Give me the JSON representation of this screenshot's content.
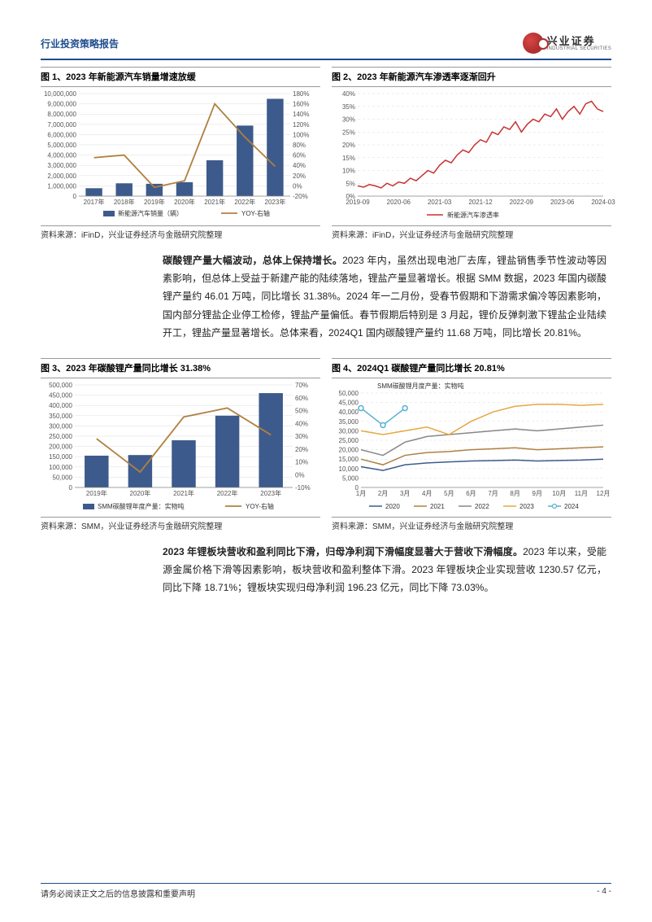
{
  "header": {
    "title": "行业投资策略报告",
    "logo_cn": "兴业证券",
    "logo_en": "INDUSTRIAL SECURITIES"
  },
  "fig1": {
    "title": "图 1、2023 年新能源汽车销量增速放缓",
    "source": "资料来源：iFinD，兴业证券经济与金融研究院整理",
    "type": "bar+line",
    "categories": [
      "2017年",
      "2018年",
      "2019年",
      "2020年",
      "2021年",
      "2022年",
      "2023年"
    ],
    "bar_values": [
      770000,
      1250000,
      1200000,
      1360000,
      3500000,
      6880000,
      9490000
    ],
    "bar_color": "#3d5a8c",
    "y1_ticks": [
      0,
      1000000,
      2000000,
      3000000,
      4000000,
      5000000,
      6000000,
      7000000,
      8000000,
      9000000,
      10000000
    ],
    "line_values": [
      55,
      60,
      -3,
      10,
      160,
      95,
      38
    ],
    "line_color": "#b08040",
    "y2_ticks": [
      "-20%",
      "0%",
      "20%",
      "40%",
      "60%",
      "80%",
      "100%",
      "120%",
      "140%",
      "160%",
      "180%"
    ],
    "y2_min": -20,
    "y2_max": 180,
    "legend_bar": "新能源汽车销量（辆）",
    "legend_line": "YOY-右轴"
  },
  "fig2": {
    "title": "图 2、2023 年新能源汽车渗透率逐渐回升",
    "source": "资料来源：iFinD，兴业证券经济与金融研究院整理",
    "type": "line",
    "x_labels": [
      "2019-09",
      "2020-06",
      "2021-03",
      "2021-12",
      "2022-09",
      "2023-06",
      "2024-03"
    ],
    "y_ticks": [
      "0%",
      "5%",
      "10%",
      "15%",
      "20%",
      "25%",
      "30%",
      "35%",
      "40%"
    ],
    "y_min": 0,
    "y_max": 40,
    "line_color": "#c83232",
    "legend": "新能源汽车渗透率",
    "points": [
      4,
      3.5,
      4.5,
      4,
      3.2,
      5,
      4,
      5.5,
      5,
      7,
      6,
      8,
      10,
      9,
      12,
      14,
      13,
      16,
      18,
      17,
      20,
      22,
      21,
      25,
      24,
      27,
      26,
      29,
      25,
      28,
      30,
      29,
      32,
      31,
      34,
      30,
      33,
      35,
      32,
      36,
      37,
      34,
      33
    ]
  },
  "para1": {
    "lead": "碳酸锂产量大幅波动，总体上保持增长。",
    "text": "2023 年内，虽然出现电池厂去库，锂盐销售季节性波动等因素影响，但总体上受益于新建产能的陆续落地，锂盐产量显著增长。根据 SMM 数据，2023 年国内碳酸锂产量约 46.01 万吨，同比增长 31.38%。2024 年一二月份，受春节假期和下游需求偏冷等因素影响，国内部分锂盐企业停工检修，锂盐产量偏低。春节假期后特别是 3 月起，锂价反弹刺激下锂盐企业陆续开工，锂盐产量显著增长。总体来看，2024Q1 国内碳酸锂产量约 11.68 万吨，同比增长 20.81%。"
  },
  "fig3": {
    "title": "图 3、2023 年碳酸锂产量同比增长 31.38%",
    "source": "资料来源：SMM，兴业证券经济与金融研究院整理",
    "type": "bar+line",
    "categories": [
      "2019年",
      "2020年",
      "2021年",
      "2022年",
      "2023年"
    ],
    "bar_values": [
      155000,
      158000,
      230000,
      350000,
      460000
    ],
    "bar_color": "#3d5a8c",
    "y1_ticks": [
      0,
      50000,
      100000,
      150000,
      200000,
      250000,
      300000,
      350000,
      400000,
      450000,
      500000
    ],
    "line_values": [
      28,
      2,
      45,
      52,
      31
    ],
    "line_color": "#b08040",
    "y2_ticks": [
      "-10%",
      "0%",
      "10%",
      "20%",
      "30%",
      "40%",
      "50%",
      "60%",
      "70%"
    ],
    "y2_min": -10,
    "y2_max": 70,
    "legend_bar": "SMM碳酸锂年度产量：实物吨",
    "legend_line": "YOY-右轴"
  },
  "fig4": {
    "title": "图 4、2024Q1 碳酸锂产量同比增长 20.81%",
    "source": "资料来源：SMM，兴业证券经济与金融研究院整理",
    "type": "multiline",
    "chart_label": "SMM碳酸锂月度产量：实物吨",
    "x_labels": [
      "1月",
      "2月",
      "3月",
      "4月",
      "5月",
      "6月",
      "7月",
      "8月",
      "9月",
      "10月",
      "11月",
      "12月"
    ],
    "y_ticks": [
      0,
      5000,
      10000,
      15000,
      20000,
      25000,
      30000,
      35000,
      40000,
      45000,
      50000
    ],
    "y_max": 50000,
    "series": {
      "2020": {
        "color": "#3d5a8c",
        "data": [
          11000,
          9000,
          12000,
          13000,
          13500,
          14000,
          14200,
          14500,
          14000,
          14300,
          14500,
          15000
        ]
      },
      "2021": {
        "color": "#b08040",
        "data": [
          15000,
          12000,
          17000,
          18500,
          19000,
          20000,
          20500,
          21000,
          20000,
          20500,
          21000,
          21500
        ]
      },
      "2022": {
        "color": "#888888",
        "data": [
          20000,
          17000,
          24000,
          27000,
          28000,
          29000,
          30000,
          31000,
          30000,
          31000,
          32000,
          33000
        ]
      },
      "2023": {
        "color": "#e6a840",
        "data": [
          30000,
          28000,
          30000,
          32000,
          28000,
          35000,
          40000,
          43000,
          44000,
          44000,
          43500,
          44000
        ]
      },
      "2024": {
        "color": "#5ab0d0",
        "data": [
          42000,
          33000,
          42000
        ],
        "marker": true
      }
    },
    "legend_order": [
      "2020",
      "2021",
      "2022",
      "2023",
      "2024"
    ]
  },
  "para2": {
    "lead": "2023 年锂板块营收和盈利同比下滑，归母净利润下滑幅度显著大于营收下滑幅度。",
    "text": "2023 年以来，受能源金属价格下滑等因素影响，板块营收和盈利整体下滑。2023 年锂板块企业实现营收 1230.57 亿元，同比下降 18.71%；锂板块实现归母净利润 196.23 亿元，同比下降 73.03%。"
  },
  "footer": {
    "disclaimer": "请务必阅读正文之后的信息披露和重要声明",
    "page": "- 4 -"
  }
}
